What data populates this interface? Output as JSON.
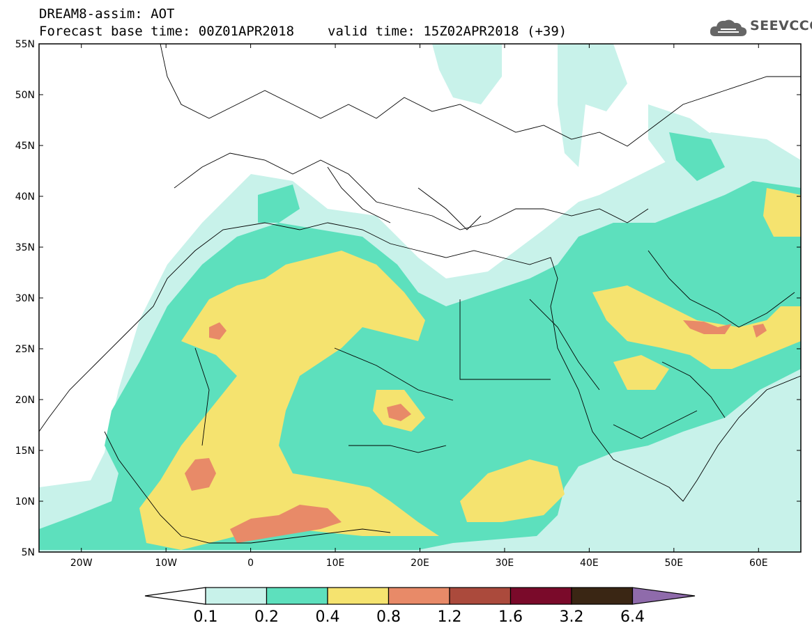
{
  "header": {
    "line1": "DREAM8-assim: AOT",
    "line2_base": "Forecast base time: 00Z01APR2018",
    "line2_valid": "valid time: 15Z02APR2018 (+39)"
  },
  "logo": {
    "text": "SEEVCCC",
    "icon": "cloud-icon",
    "color": "#555555"
  },
  "map": {
    "lat_labels": [
      "55N",
      "50N",
      "45N",
      "40N",
      "35N",
      "30N",
      "25N",
      "20N",
      "15N",
      "10N",
      "5N"
    ],
    "lon_labels": [
      "20W",
      "10W",
      "0",
      "10E",
      "20E",
      "30E",
      "40E",
      "50E",
      "60E"
    ],
    "lat_range": [
      5,
      55
    ],
    "lon_range": [
      -25,
      65
    ]
  },
  "colorbar": {
    "labels": [
      "0.1",
      "0.2",
      "0.4",
      "0.8",
      "1.2",
      "1.6",
      "3.2",
      "6.4"
    ],
    "colors": [
      "#ffffff",
      "#c8f2ea",
      "#5de0bd",
      "#f5e36f",
      "#e88a68",
      "#ab4a3c",
      "#7a0a2a",
      "#3a2614",
      "#8f6bab"
    ]
  },
  "palette": {
    "c1": "#c8f2ea",
    "c2": "#5de0bd",
    "c3": "#f5e36f",
    "c4": "#e88a68",
    "c5": "#ab4a3c"
  }
}
